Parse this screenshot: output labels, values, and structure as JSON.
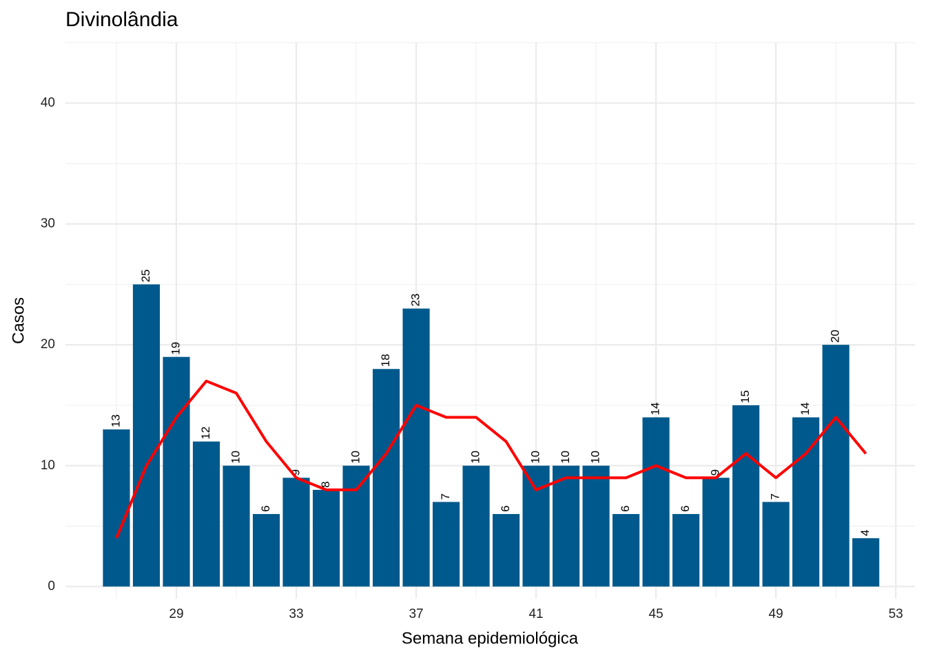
{
  "chart_data": {
    "type": "bar",
    "title": "Divinolândia",
    "xlabel": "Semana epidemiológica",
    "ylabel": "Casos",
    "x": [
      27,
      28,
      29,
      30,
      31,
      32,
      33,
      34,
      35,
      36,
      37,
      38,
      39,
      40,
      41,
      42,
      43,
      44,
      45,
      46,
      47,
      48,
      49,
      50,
      51,
      52
    ],
    "values": [
      13,
      25,
      19,
      12,
      10,
      6,
      9,
      8,
      10,
      18,
      23,
      7,
      10,
      6,
      10,
      10,
      10,
      6,
      14,
      6,
      9,
      15,
      7,
      14,
      20,
      4
    ],
    "color": "#00598c",
    "line": {
      "values": [
        4,
        10,
        14,
        17,
        16,
        12,
        9,
        8,
        8,
        11,
        15,
        14,
        14,
        12,
        8,
        9,
        9,
        9,
        10,
        9,
        9,
        11,
        9,
        11,
        14,
        11
      ],
      "color": "#ff0000"
    },
    "xlim": [
      25.3,
      53.64
    ],
    "xticks": [
      29,
      33,
      37,
      41,
      45,
      49,
      53
    ],
    "xminor": [
      27,
      31,
      35,
      39,
      43,
      47,
      51
    ],
    "ylim": [
      -1,
      45
    ],
    "yticks": [
      0,
      10,
      20,
      30,
      40
    ],
    "yminor": [
      5,
      15,
      25,
      35,
      45
    ],
    "grid": true
  }
}
